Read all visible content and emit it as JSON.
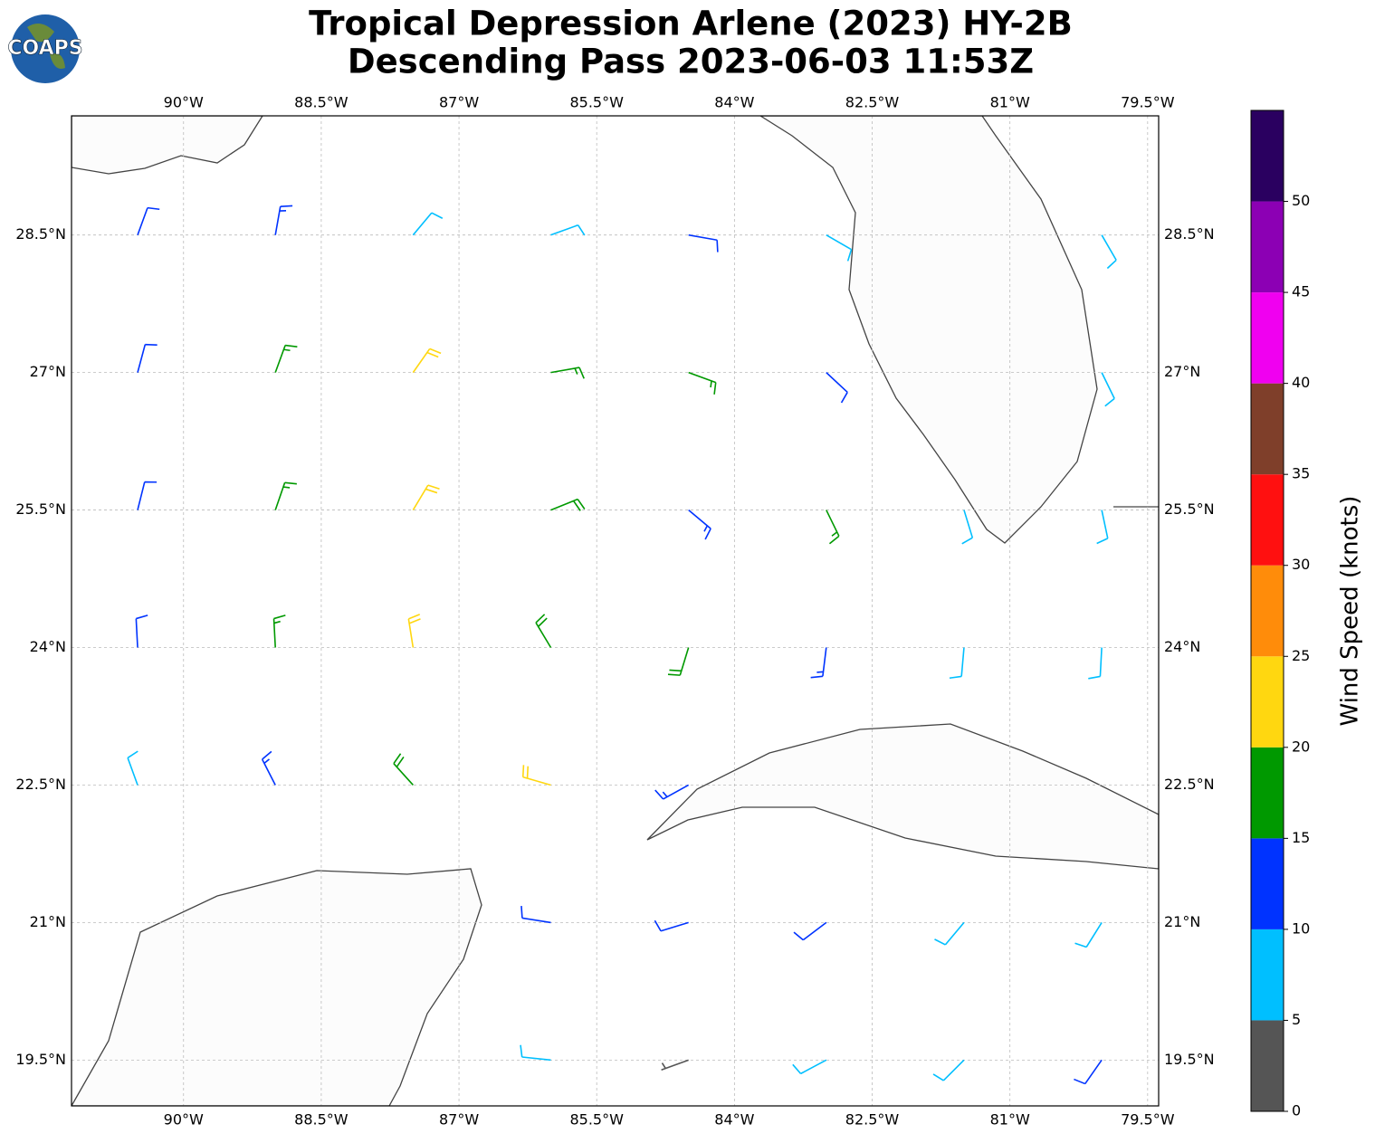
{
  "logo": "COAPS",
  "title": [
    "Tropical Depression Arlene (2023) HY-2B",
    "Descending Pass 2023-06-03 11:53Z"
  ],
  "axes": {
    "xlim": [
      -91.22,
      -79.38
    ],
    "ylim": [
      19.0,
      29.8
    ],
    "xticks": [
      {
        "value": -90,
        "label": "90°W"
      },
      {
        "value": -88.5,
        "label": "88.5°W"
      },
      {
        "value": -87,
        "label": "87°W"
      },
      {
        "value": -85.5,
        "label": "85.5°W"
      },
      {
        "value": -84,
        "label": "84°W"
      },
      {
        "value": -82.5,
        "label": "82.5°W"
      },
      {
        "value": -81,
        "label": "81°W"
      },
      {
        "value": -79.5,
        "label": "79.5°W"
      }
    ],
    "yticks": [
      {
        "value": 28.5,
        "label": "28.5°N"
      },
      {
        "value": 27,
        "label": "27°N"
      },
      {
        "value": 25.5,
        "label": "25.5°N"
      },
      {
        "value": 24,
        "label": "24°N"
      },
      {
        "value": 22.5,
        "label": "22.5°N"
      },
      {
        "value": 21,
        "label": "21°N"
      },
      {
        "value": 19.5,
        "label": "19.5°N"
      }
    ],
    "grid": true
  },
  "barbs": {
    "lon": [
      -90.5,
      -89,
      -87.5,
      -86,
      -84.5,
      -83,
      -80,
      -90.5,
      -89,
      -87.5,
      -86,
      -84.5,
      -83,
      -80,
      -90.5,
      -89,
      -87.5,
      -86,
      -84.5,
      -83,
      -81.5,
      -80,
      -90.5,
      -89,
      -87.5,
      -86,
      -84.5,
      -83,
      -81.5,
      -80,
      -90.5,
      -89,
      -87.5,
      -86,
      -84.5,
      -86,
      -84.5,
      -83,
      -81.5,
      -80,
      -86,
      -84.5,
      -83,
      -81.5,
      -80
    ],
    "lat": [
      28.5,
      28.5,
      28.5,
      28.5,
      28.5,
      28.5,
      28.5,
      27,
      27,
      27,
      27,
      27,
      27,
      27,
      25.5,
      25.5,
      25.5,
      25.5,
      25.5,
      25.5,
      25.5,
      25.5,
      24,
      24,
      24,
      24,
      24,
      24,
      24,
      24,
      22.5,
      22.5,
      22.5,
      22.5,
      22.5,
      21,
      21,
      21,
      21,
      21,
      19.5,
      19.5,
      19.5,
      19.5,
      19.5
    ],
    "speed": [
      12,
      13,
      8,
      8,
      12,
      9,
      9,
      12,
      16,
      20,
      16,
      17,
      12,
      8,
      12,
      17,
      21,
      18,
      14,
      16,
      9,
      8,
      12,
      16,
      22,
      19,
      18,
      13,
      9,
      8,
      8,
      13,
      18,
      21,
      13,
      12,
      10,
      12,
      8,
      9,
      8,
      3,
      9,
      8,
      12
    ],
    "dir": [
      20,
      10,
      40,
      70,
      100,
      120,
      150,
      15,
      20,
      35,
      80,
      110,
      133,
      154,
      14,
      19,
      31,
      68,
      130,
      154,
      163,
      168,
      357,
      357,
      351,
      329,
      197,
      187,
      185,
      183,
      340,
      333,
      318,
      286,
      241,
      279,
      253,
      233,
      220,
      212,
      276,
      250,
      242,
      225,
      215
    ]
  },
  "colorbar": {
    "label": "Wind Speed (knots)",
    "lim": [
      0,
      55
    ],
    "bounds": [
      0,
      5,
      10,
      15,
      20,
      25,
      30,
      35,
      40,
      45,
      50,
      55
    ],
    "colors": [
      "#555555",
      "#00bfff",
      "#0033ff",
      "#009900",
      "#ffd710",
      "#ff8c0a",
      "#ff1010",
      "#7f3f2a",
      "#f000f0",
      "#8c00b4",
      "#2a0060"
    ],
    "ticks": [
      0,
      5,
      10,
      15,
      20,
      25,
      30,
      35,
      40,
      45,
      50
    ]
  }
}
